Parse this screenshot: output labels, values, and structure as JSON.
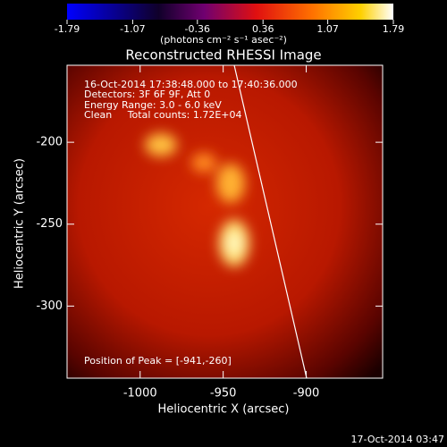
{
  "chart_data": {
    "type": "image",
    "title": "Reconstructed RHESSI Image",
    "colorbar": {
      "clim": [
        -1.79,
        1.79
      ],
      "ticks": [
        -1.79,
        -1.07,
        -0.36,
        0.36,
        1.07,
        1.79
      ],
      "label": "(photons cm⁻² s⁻¹ asec⁻²)"
    },
    "xlabel": "Heliocentric X (arcsec)",
    "ylabel": "Heliocentric Y (arcsec)",
    "xlim": [
      -1044,
      -854
    ],
    "xticks": [
      -1000,
      -950,
      -900
    ],
    "ylim": [
      -344,
      -153
    ],
    "yticks": [
      -300,
      -250,
      -200
    ],
    "annotations": [
      "16-Oct-2014 17:38:48.000 to 17:40:36.000",
      "Detectors: 3F 6F 9F, Att 0",
      "Energy Range: 3.0 - 6.0 keV",
      "Clean     Total counts: 1.72E+04"
    ],
    "peak_label": "Position of Peak = [-941,-260]",
    "footer": "17-Oct-2014 03:47"
  }
}
